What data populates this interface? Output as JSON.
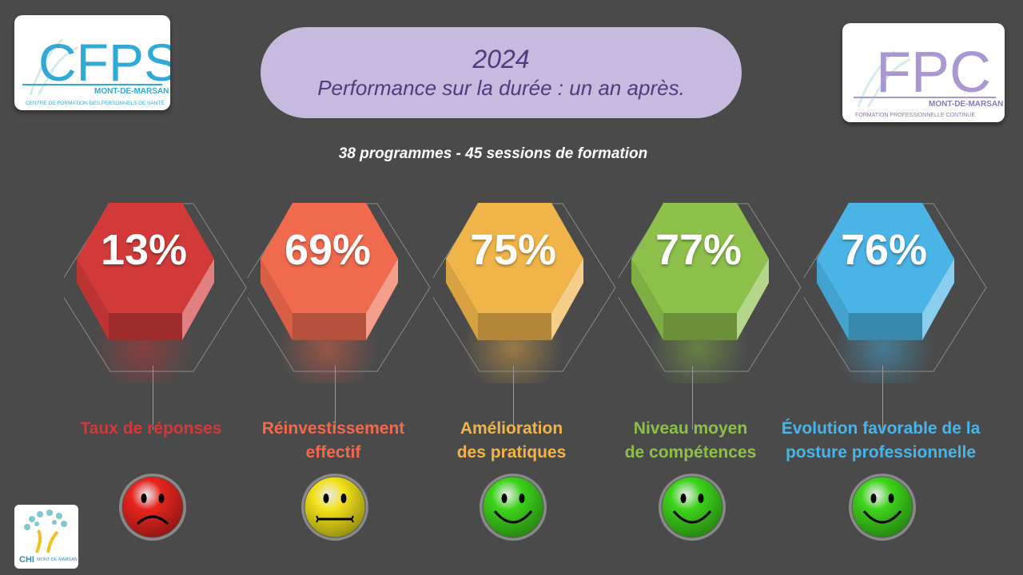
{
  "logos": {
    "left": {
      "big": "CFPS",
      "town": "MONT-DE-MARSAN",
      "caption": "CENTRE DE FORMATION DES PERSONNELS DE SANTÉ"
    },
    "right": {
      "big": "FPC",
      "town": "MONT-DE-MARSAN",
      "caption": "FORMATION PROFESSIONNELLE CONTINUE"
    },
    "bottom": {
      "big": "CHI",
      "town": "MONT-DE-MARSAN"
    }
  },
  "title": {
    "year": "2024",
    "subtitle": "Performance sur la durée : un an après."
  },
  "summary": "38 programmes - 45 sessions de formation",
  "metrics": [
    {
      "value": "13%",
      "label_lines": [
        "Taux de réponses",
        ""
      ],
      "color": "#d23a3a",
      "face": "sad",
      "face_icon": "sad-face-icon"
    },
    {
      "value": "69%",
      "label_lines": [
        "Réinvestissement",
        "effectif"
      ],
      "color": "#f06a4e",
      "face": "neutral",
      "face_icon": "neutral-face-icon"
    },
    {
      "value": "75%",
      "label_lines": [
        "Amélioration",
        "des pratiques"
      ],
      "color": "#f0b44a",
      "face": "happy",
      "face_icon": "happy-face-icon"
    },
    {
      "value": "77%",
      "label_lines": [
        "Niveau moyen",
        "de compétences"
      ],
      "color": "#8cc04a",
      "face": "happy",
      "face_icon": "happy-face-icon"
    },
    {
      "value": "76%",
      "label_lines": [
        "Évolution favorable de la",
        "posture professionnelle"
      ],
      "color": "#4ab4e6",
      "face": "happy",
      "face_icon": "happy-face-icon"
    }
  ]
}
